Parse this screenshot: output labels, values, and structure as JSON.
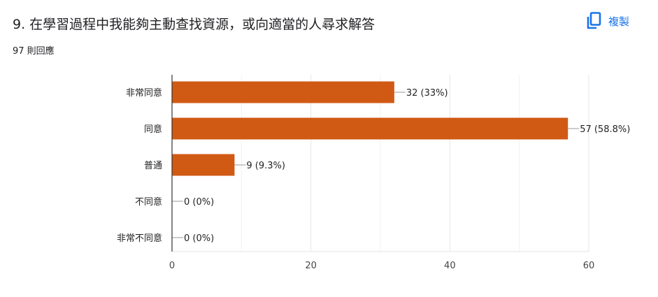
{
  "question": {
    "title": "9. 在學習過程中我能夠主動查找資源，或向適當的人尋求解答",
    "response_count": "97 則回應"
  },
  "toolbar": {
    "copy_label": "複製",
    "copy_icon": "copy-icon"
  },
  "colors": {
    "bar": "#d05a14",
    "accent": "#1a73e8",
    "grid": "#e6e6e6",
    "axis": "#333333"
  },
  "chart_data": {
    "type": "bar",
    "orientation": "horizontal",
    "categories": [
      "非常同意",
      "同意",
      "普通",
      "不同意",
      "非常不同意"
    ],
    "values": [
      32,
      57,
      9,
      0,
      0
    ],
    "data_labels": [
      "32 (33%)",
      "57 (58.8%)",
      "9 (9.3%)",
      "0 (0%)",
      "0 (0%)"
    ],
    "xlim": [
      0,
      60
    ],
    "xticks": [
      0,
      20,
      40,
      60
    ],
    "grid": true,
    "legend": "none",
    "title": "",
    "xlabel": "",
    "ylabel": ""
  }
}
